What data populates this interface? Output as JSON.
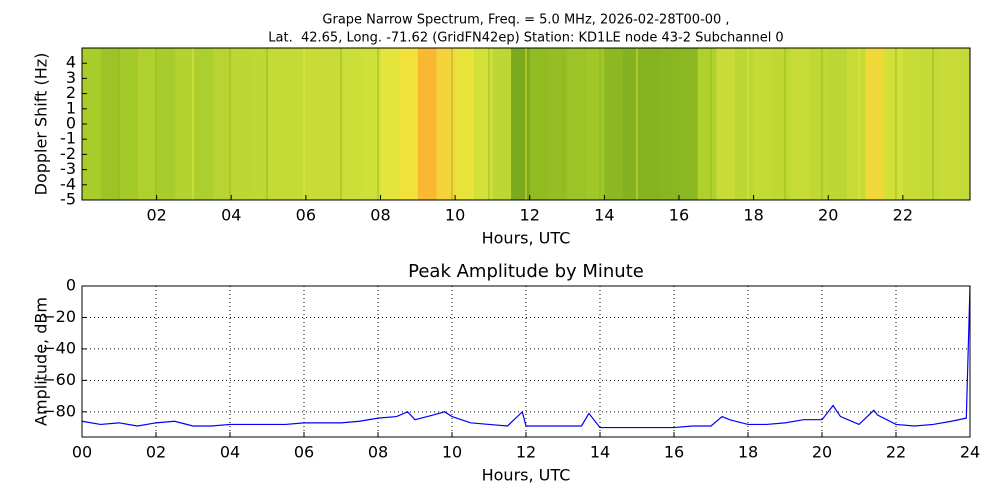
{
  "chart_data": [
    {
      "type": "spectrogram",
      "title": "Grape Narrow Spectrum, Freq. = 5.0 MHz, 2026-02-28T00-00 ,",
      "subtitle": "Lat.  42.65, Long. -71.62 (GridFN42ep) Station: KD1LE node 43-2 Subchannel 0",
      "x_label": "Hours, UTC",
      "y_label": "Doppler Shift (Hz)",
      "bins": [
        0,
        0.5,
        1,
        1.5,
        2,
        2.5,
        3,
        3.5,
        4,
        4.5,
        5,
        5.5,
        6,
        6.5,
        7,
        7.5,
        8,
        8.5,
        9,
        9.5,
        10,
        10.5,
        11,
        11.5,
        12,
        12.5,
        13,
        13.5,
        14,
        14.5,
        15,
        15.5,
        16,
        16.5,
        17,
        17.5,
        18,
        18.5,
        19,
        19.5,
        20,
        20.5,
        21,
        21.5,
        22,
        22.5,
        23,
        23.5,
        23.8
      ],
      "colors": [
        "#a8cc2a",
        "#9cc426",
        "#a4ca2a",
        "#b0d02e",
        "#a8cc2c",
        "#b4d230",
        "#acce2e",
        "#b8d432",
        "#bcd634",
        "#c0d834",
        "#c4da36",
        "#c4da36",
        "#c8dc38",
        "#c8dc38",
        "#ccde38",
        "#d0e03a",
        "#e4e43c",
        "#f2e23a",
        "#f8b832",
        "#f4d43a",
        "#e8e43c",
        "#d4e03a",
        "#bcd634",
        "#7caa1e",
        "#90bc22",
        "#94be24",
        "#9cc426",
        "#a0c628",
        "#8cb822",
        "#84b220",
        "#86b420",
        "#88b622",
        "#8cb822",
        "#b0d02e",
        "#c8dc38",
        "#bcd634",
        "#c4da36",
        "#c0d834",
        "#c8dc38",
        "#c0d834",
        "#bcd634",
        "#c8dc38",
        "#f0d838",
        "#d4e03a",
        "#c8dc38",
        "#c4da36",
        "#c8dc38",
        "#c4da36"
      ],
      "xlim": [
        0,
        23.8
      ],
      "ylim": [
        -5,
        5
      ],
      "xticks": [
        {
          "value": 2,
          "label": "02"
        },
        {
          "value": 4,
          "label": "04"
        },
        {
          "value": 6,
          "label": "06"
        },
        {
          "value": 8,
          "label": "08"
        },
        {
          "value": 10,
          "label": "10"
        },
        {
          "value": 12,
          "label": "12"
        },
        {
          "value": 14,
          "label": "14"
        },
        {
          "value": 16,
          "label": "16"
        },
        {
          "value": 18,
          "label": "18"
        },
        {
          "value": 20,
          "label": "20"
        },
        {
          "value": 22,
          "label": "22"
        }
      ],
      "yticks": [
        -5,
        -4,
        -3,
        -2,
        -1,
        0,
        1,
        2,
        3,
        4
      ],
      "grid": false
    },
    {
      "type": "line",
      "title": "Peak Amplitude by Minute",
      "x_label": "Hours, UTC",
      "y_label": "Amplitude, dBm",
      "x": [
        0,
        0.5,
        1,
        1.5,
        2,
        2.5,
        3,
        3.5,
        4,
        4.5,
        5,
        5.5,
        6,
        6.5,
        7,
        7.5,
        8,
        8.5,
        8.8,
        9,
        9.5,
        9.8,
        10,
        10.5,
        11,
        11.5,
        11.9,
        12,
        12.5,
        13,
        13.5,
        13.7,
        14,
        14.5,
        15,
        15.5,
        16,
        16.5,
        17,
        17.3,
        17.5,
        18,
        18.5,
        19,
        19.5,
        20,
        20.3,
        20.5,
        21,
        21.4,
        21.5,
        22,
        22.5,
        23,
        23.5,
        23.9,
        24
      ],
      "series": [
        {
          "name": "Peak Amplitude",
          "color": "#0000ff",
          "values": [
            -86,
            -88,
            -87,
            -89,
            -87,
            -86,
            -89,
            -89,
            -88,
            -88,
            -88,
            -88,
            -87,
            -87,
            -87,
            -86,
            -84,
            -83,
            -80,
            -85,
            -82,
            -80,
            -83,
            -87,
            -88,
            -89,
            -80,
            -89,
            -89,
            -89,
            -89,
            -81,
            -90,
            -90,
            -90,
            -90,
            -90,
            -89,
            -89,
            -83,
            -85,
            -88,
            -88,
            -87,
            -85,
            -85,
            -76,
            -83,
            -88,
            -79,
            -82,
            -88,
            -89,
            -88,
            -86,
            -84,
            0
          ]
        }
      ],
      "xlim": [
        0,
        24
      ],
      "ylim": [
        -96,
        0
      ],
      "xticks": [
        {
          "value": 0,
          "label": "00"
        },
        {
          "value": 2,
          "label": "02"
        },
        {
          "value": 4,
          "label": "04"
        },
        {
          "value": 6,
          "label": "06"
        },
        {
          "value": 8,
          "label": "08"
        },
        {
          "value": 10,
          "label": "10"
        },
        {
          "value": 12,
          "label": "12"
        },
        {
          "value": 14,
          "label": "14"
        },
        {
          "value": 16,
          "label": "16"
        },
        {
          "value": 18,
          "label": "18"
        },
        {
          "value": 20,
          "label": "20"
        },
        {
          "value": 22,
          "label": "22"
        },
        {
          "value": 24,
          "label": "24"
        }
      ],
      "yticks": [
        {
          "value": -80,
          "label": "−80"
        },
        {
          "value": -60,
          "label": "−60"
        },
        {
          "value": -40,
          "label": "−40"
        },
        {
          "value": -20,
          "label": "−20"
        },
        0
      ],
      "grid": true
    }
  ]
}
